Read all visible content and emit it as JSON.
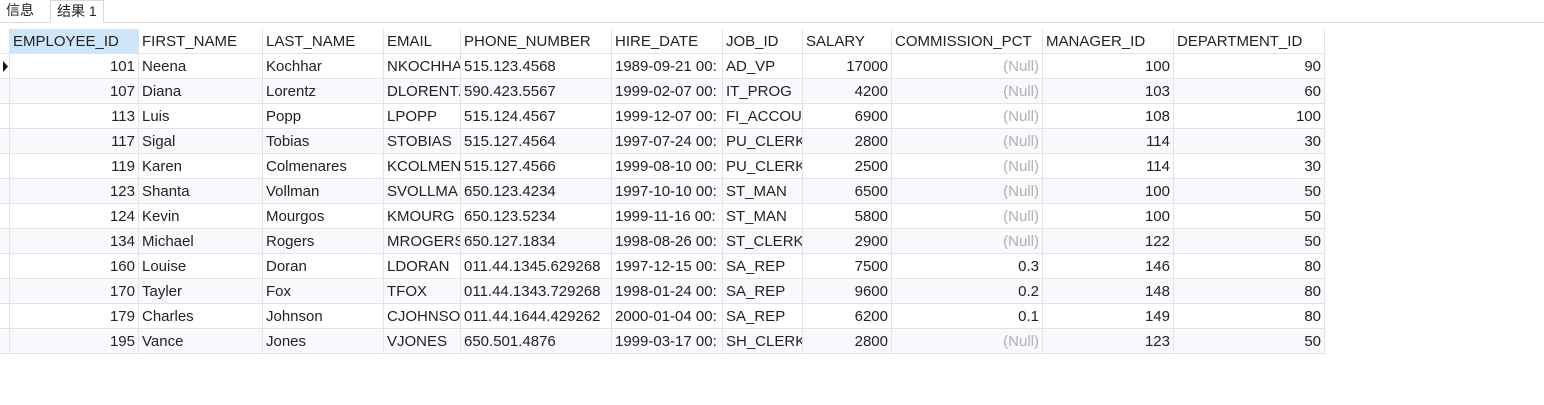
{
  "tabs": [
    "信息",
    "结果 1"
  ],
  "table": {
    "columns": [
      "EMPLOYEE_ID",
      "FIRST_NAME",
      "LAST_NAME",
      "EMAIL",
      "PHONE_NUMBER",
      "HIRE_DATE",
      "JOB_ID",
      "SALARY",
      "COMMISSION_PCT",
      "MANAGER_ID",
      "DEPARTMENT_ID"
    ],
    "rows": [
      [
        101,
        "Neena",
        "Kochhar",
        "NKOCHHA",
        "515.123.4568",
        "1989-09-21 00:",
        "AD_VP",
        17000,
        "(Null)",
        100,
        90
      ],
      [
        107,
        "Diana",
        "Lorentz",
        "DLORENTZ",
        "590.423.5567",
        "1999-02-07 00:",
        "IT_PROG",
        4200,
        "(Null)",
        103,
        60
      ],
      [
        113,
        "Luis",
        "Popp",
        "LPOPP",
        "515.124.4567",
        "1999-12-07 00:",
        "FI_ACCOUN",
        6900,
        "(Null)",
        108,
        100
      ],
      [
        117,
        "Sigal",
        "Tobias",
        "STOBIAS",
        "515.127.4564",
        "1997-07-24 00:",
        "PU_CLERK",
        2800,
        "(Null)",
        114,
        30
      ],
      [
        119,
        "Karen",
        "Colmenares",
        "KCOLMEN",
        "515.127.4566",
        "1999-08-10 00:",
        "PU_CLERK",
        2500,
        "(Null)",
        114,
        30
      ],
      [
        123,
        "Shanta",
        "Vollman",
        "SVOLLMA",
        "650.123.4234",
        "1997-10-10 00:",
        "ST_MAN",
        6500,
        "(Null)",
        100,
        50
      ],
      [
        124,
        "Kevin",
        "Mourgos",
        "KMOURG",
        "650.123.5234",
        "1999-11-16 00:",
        "ST_MAN",
        5800,
        "(Null)",
        100,
        50
      ],
      [
        134,
        "Michael",
        "Rogers",
        "MROGERS",
        "650.127.1834",
        "1998-08-26 00:",
        "ST_CLERK",
        2900,
        "(Null)",
        122,
        50
      ],
      [
        160,
        "Louise",
        "Doran",
        "LDORAN",
        "011.44.1345.629268",
        "1997-12-15 00:",
        "SA_REP",
        7500,
        0.3,
        146,
        80
      ],
      [
        170,
        "Tayler",
        "Fox",
        "TFOX",
        "011.44.1343.729268",
        "1998-01-24 00:",
        "SA_REP",
        9600,
        0.2,
        148,
        80
      ],
      [
        179,
        "Charles",
        "Johnson",
        "CJOHNSO",
        "011.44.1644.429262",
        "2000-01-04 00:",
        "SA_REP",
        6200,
        0.1,
        149,
        80
      ],
      [
        195,
        "Vance",
        "Jones",
        "VJONES",
        "650.501.4876",
        "1999-03-17 00:",
        "SH_CLERK",
        2800,
        "(Null)",
        123,
        50
      ]
    ]
  }
}
